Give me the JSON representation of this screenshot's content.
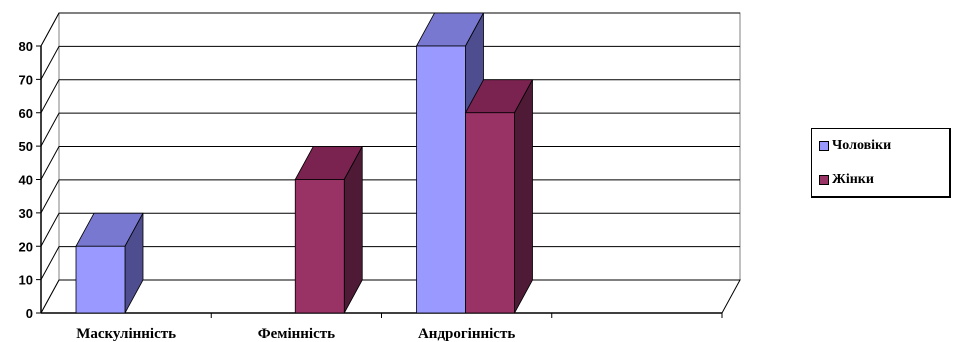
{
  "chart_data": {
    "type": "bar",
    "categories": [
      "Маскулінність",
      "Фемінність",
      "Андрогінність"
    ],
    "series": [
      {
        "name": "Чоловіки",
        "values": [
          20,
          0,
          80
        ]
      },
      {
        "name": "Жінки",
        "values": [
          0,
          40,
          60
        ]
      }
    ],
    "ylim": [
      0,
      80
    ],
    "yticks": [
      0,
      10,
      20,
      30,
      40,
      50,
      60,
      70,
      80
    ],
    "grid": true,
    "legend_position": "right",
    "colors": {
      "Чоловіки": {
        "front": "#9999ff",
        "top": "#7878d0",
        "side": "#4d4d8f"
      },
      "Жінки": {
        "front": "#993366",
        "top": "#7a2350",
        "side": "#4f1a36"
      }
    }
  },
  "legend": {
    "items": [
      {
        "label": "Чоловіки",
        "color": "#9999ff"
      },
      {
        "label": "Жінки",
        "color": "#993366"
      }
    ]
  }
}
